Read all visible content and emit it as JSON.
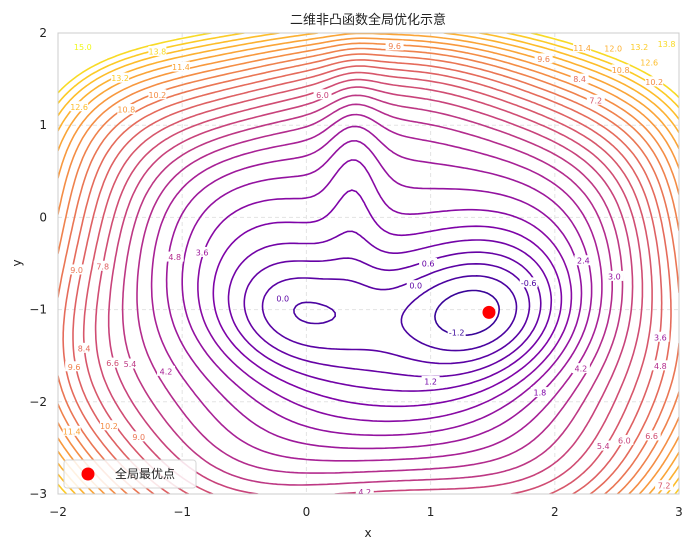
{
  "chart_data": {
    "type": "contour",
    "title": "二维非凸函数全局优化示意",
    "xlabel": "x",
    "ylabel": "y",
    "xlim": [
      -2,
      3
    ],
    "ylim": [
      -3,
      2
    ],
    "x_ticks": [
      "−2",
      "−1",
      "0",
      "1",
      "2",
      "3"
    ],
    "y_ticks": [
      "2",
      "1",
      "0",
      "−1",
      "−2",
      "−3"
    ],
    "grid": true,
    "colormap": "plasma",
    "levels": {
      "start": -1.2,
      "step": 0.6,
      "end": 13.8
    },
    "contour_labels": [
      {
        "text": "0.0",
        "x": -0.19,
        "y": -0.88
      },
      {
        "text": "0.0",
        "x": 0.88,
        "y": -0.74
      },
      {
        "text": "0.6",
        "x": 0.98,
        "y": -0.5
      },
      {
        "text": "-0.6",
        "x": 1.79,
        "y": -0.71
      },
      {
        "text": "-1.2",
        "x": 1.21,
        "y": -1.25
      },
      {
        "text": "1.2",
        "x": 1.0,
        "y": -1.78
      },
      {
        "text": "1.8",
        "x": 1.88,
        "y": -1.9
      },
      {
        "text": "2.4",
        "x": 2.23,
        "y": -0.47
      },
      {
        "text": "3.0",
        "x": 2.48,
        "y": -0.64
      },
      {
        "text": "3.6",
        "x": 2.85,
        "y": -1.3
      },
      {
        "text": "3.6",
        "x": -0.84,
        "y": -0.38
      },
      {
        "text": "4.2",
        "x": -1.13,
        "y": -1.67
      },
      {
        "text": "4.2",
        "x": 2.21,
        "y": -1.64
      },
      {
        "text": "4.2",
        "x": 0.47,
        "y": -2.98
      },
      {
        "text": "4.8",
        "x": -1.06,
        "y": -0.43
      },
      {
        "text": "4.8",
        "x": 2.85,
        "y": -1.61
      },
      {
        "text": "5.4",
        "x": -1.42,
        "y": -1.59
      },
      {
        "text": "5.4",
        "x": 2.39,
        "y": -2.48
      },
      {
        "text": "6.0",
        "x": 0.13,
        "y": 1.33
      },
      {
        "text": "6.0",
        "x": 2.56,
        "y": -2.42
      },
      {
        "text": "6.6",
        "x": -1.56,
        "y": -1.58
      },
      {
        "text": "6.6",
        "x": 2.78,
        "y": -2.37
      },
      {
        "text": "7.2",
        "x": 2.33,
        "y": 1.27
      },
      {
        "text": "7.2",
        "x": 2.88,
        "y": -2.91
      },
      {
        "text": "7.8",
        "x": -1.64,
        "y": -0.53
      },
      {
        "text": "8.4",
        "x": -1.79,
        "y": -1.42
      },
      {
        "text": "8.4",
        "x": 2.2,
        "y": 1.5
      },
      {
        "text": "9.0",
        "x": -1.85,
        "y": -0.57
      },
      {
        "text": "9.0",
        "x": -1.35,
        "y": -2.38
      },
      {
        "text": "9.6",
        "x": 0.71,
        "y": 1.86
      },
      {
        "text": "9.6",
        "x": -1.87,
        "y": -1.62
      },
      {
        "text": "9.6",
        "x": 1.91,
        "y": 1.72
      },
      {
        "text": "10.2",
        "x": -1.2,
        "y": 1.33
      },
      {
        "text": "10.2",
        "x": -1.59,
        "y": -2.26
      },
      {
        "text": "10.2",
        "x": 2.8,
        "y": 1.47
      },
      {
        "text": "10.8",
        "x": -1.45,
        "y": 1.17
      },
      {
        "text": "10.8",
        "x": 2.53,
        "y": 1.6
      },
      {
        "text": "11.4",
        "x": -1.01,
        "y": 1.63
      },
      {
        "text": "11.4",
        "x": -1.89,
        "y": -2.32
      },
      {
        "text": "11.4",
        "x": 2.22,
        "y": 1.84
      },
      {
        "text": "12.0",
        "x": 2.47,
        "y": 1.83
      },
      {
        "text": "12.6",
        "x": -1.83,
        "y": 1.2
      },
      {
        "text": "12.6",
        "x": 2.76,
        "y": 1.68
      },
      {
        "text": "13.2",
        "x": -1.5,
        "y": 1.51
      },
      {
        "text": "13.2",
        "x": 2.68,
        "y": 1.85
      },
      {
        "text": "13.8",
        "x": -1.2,
        "y": 1.8
      },
      {
        "text": "13.8",
        "x": 2.9,
        "y": 1.88
      },
      {
        "text": "15.0",
        "x": -1.8,
        "y": 1.85
      }
    ],
    "marker": {
      "x": 1.47,
      "y": -1.03,
      "color": "#ff0000",
      "label": "全局最优点"
    },
    "legend": {
      "position": "lower-left",
      "entries": [
        "全局最优点"
      ]
    }
  }
}
